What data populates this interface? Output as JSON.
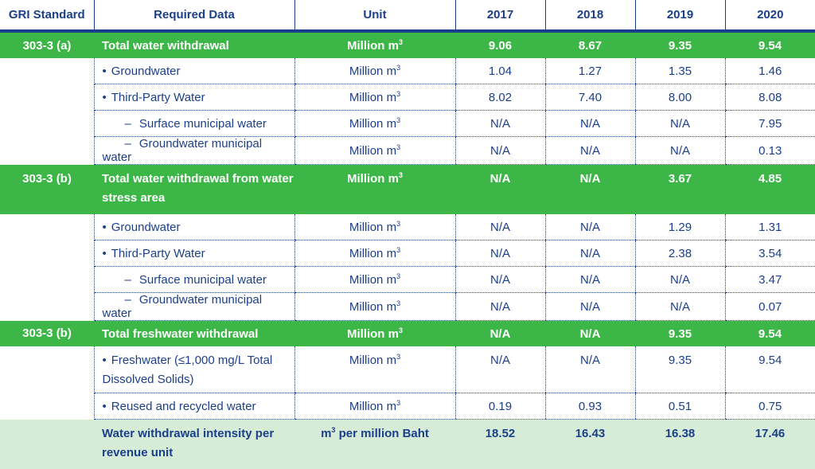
{
  "header": {
    "gri": "GRI Standard",
    "required": "Required Data",
    "unit": "Unit",
    "years": [
      "2017",
      "2018",
      "2019",
      "2020"
    ]
  },
  "rows": [
    {
      "kind": "main",
      "gri": "303-3 (a)",
      "label": "Total water withdrawal",
      "unit": "Million m",
      "sup": "3",
      "values": [
        "9.06",
        "8.67",
        "9.35",
        "9.54"
      ]
    },
    {
      "kind": "sub",
      "style": "bullet",
      "label": "Groundwater",
      "unit": "Million m",
      "sup": "3",
      "values": [
        "1.04",
        "1.27",
        "1.35",
        "1.46"
      ]
    },
    {
      "kind": "sub",
      "style": "bullet",
      "label": "Third-Party Water",
      "unit": "Million m",
      "sup": "3",
      "values": [
        "8.02",
        "7.40",
        "8.00",
        "8.08"
      ]
    },
    {
      "kind": "sub",
      "style": "dash",
      "label": "Surface municipal water",
      "unit": "Million m",
      "sup": "3",
      "values": [
        "N/A",
        "N/A",
        "N/A",
        "7.95"
      ]
    },
    {
      "kind": "sub",
      "style": "dash",
      "label": "Groundwater municipal water",
      "unit": "Million m",
      "sup": "3",
      "values": [
        "N/A",
        "N/A",
        "N/A",
        "0.13"
      ]
    },
    {
      "kind": "main",
      "tall": true,
      "gri": "303-3 (b)",
      "label": "Total water withdrawal from water stress area",
      "unit": "Million m",
      "sup": "3",
      "values": [
        "N/A",
        "N/A",
        "3.67",
        "4.85"
      ]
    },
    {
      "kind": "sub",
      "style": "bullet",
      "label": "Groundwater",
      "unit": "Million m",
      "sup": "3",
      "values": [
        "N/A",
        "N/A",
        "1.29",
        "1.31"
      ]
    },
    {
      "kind": "sub",
      "style": "bullet",
      "label": "Third-Party Water",
      "unit": "Million m",
      "sup": "3",
      "values": [
        "N/A",
        "N/A",
        "2.38",
        "3.54"
      ]
    },
    {
      "kind": "sub",
      "style": "dash",
      "label": "Surface municipal water",
      "unit": "Million m",
      "sup": "3",
      "values": [
        "N/A",
        "N/A",
        "N/A",
        "3.47"
      ]
    },
    {
      "kind": "sub",
      "style": "dash",
      "label": "Groundwater municipal water",
      "unit": "Million m",
      "sup": "3",
      "values": [
        "N/A",
        "N/A",
        "N/A",
        "0.07"
      ]
    },
    {
      "kind": "main",
      "gri": "303-3 (b)",
      "label": "Total freshwater withdrawal",
      "unit": "Million m",
      "sup": "3",
      "values": [
        "N/A",
        "N/A",
        "9.35",
        "9.54"
      ]
    },
    {
      "kind": "sub",
      "style": "bullet",
      "tall": true,
      "label": "Freshwater  (≤1,000 mg/L Total Dissolved Solids)",
      "unit": "Million m",
      "sup": "3",
      "values": [
        "N/A",
        "N/A",
        "9.35",
        "9.54"
      ]
    },
    {
      "kind": "sub",
      "style": "bullet",
      "label": "Reused and recycled water",
      "unit": "Million m",
      "sup": "3",
      "values": [
        "0.19",
        "0.93",
        "0.51",
        "0.75"
      ]
    },
    {
      "kind": "last",
      "label": "Water withdrawal intensity per revenue unit",
      "unit_pre": "m",
      "sup": "3",
      "unit": " per million Baht",
      "values": [
        "18.52",
        "16.43",
        "16.38",
        "17.46"
      ]
    }
  ],
  "colors": {
    "navy": "#1b3f8b",
    "green": "#3db648",
    "light_green": "#d6ecd6"
  }
}
